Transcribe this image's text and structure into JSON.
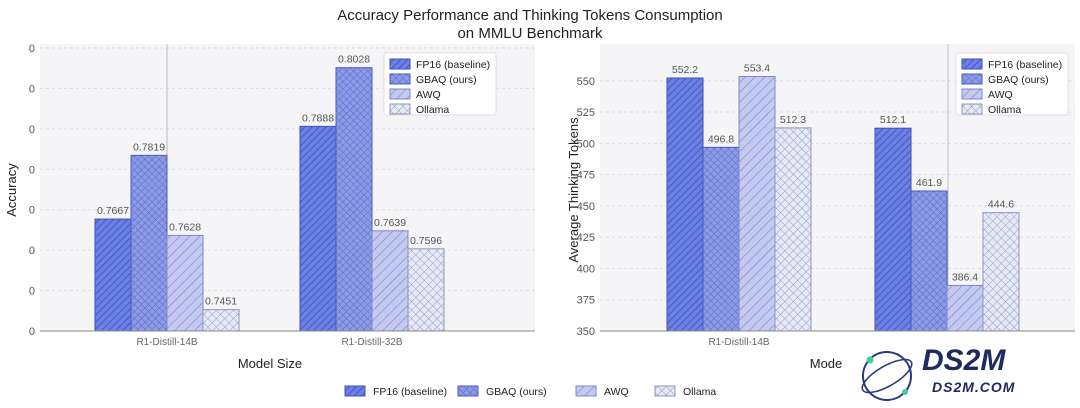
{
  "figure": {
    "title_line1": "Accuracy Performance and Thinking Tokens Consumption",
    "title_line2": "on MMLU Benchmark"
  },
  "series_style": [
    {
      "name": "FP16 (baseline)",
      "fill": "#6b80e6",
      "stroke": "#3f51b5",
      "pattern": "diag-dense"
    },
    {
      "name": "GBAQ (ours)",
      "fill": "#8d9be6",
      "stroke": "#4a5bbd",
      "pattern": "cross-dense"
    },
    {
      "name": "AWQ",
      "fill": "#c3c9f0",
      "stroke": "#7d86c8",
      "pattern": "diag"
    },
    {
      "name": "Ollama",
      "fill": "#e6e9f7",
      "stroke": "#8e95b8",
      "pattern": "cross"
    }
  ],
  "chart_data": [
    {
      "type": "bar",
      "xlabel": "Model Size",
      "ylabel": "Accuracy",
      "categories": [
        "R1-Distill-14B",
        "R1-Distill-32B"
      ],
      "yticks": [
        "0",
        "0",
        "0",
        "0",
        "0",
        "0",
        "0",
        "0"
      ],
      "ylim": [
        0.74,
        0.8075
      ],
      "grid": true,
      "legend_position": "top-right",
      "series": [
        {
          "name": "FP16 (baseline)",
          "values": [
            0.7667,
            0.7888
          ],
          "labels": [
            "0.7667",
            "0.7888"
          ]
        },
        {
          "name": "GBAQ (ours)",
          "values": [
            0.7819,
            0.8028
          ],
          "labels": [
            "0.7819",
            "0.8028"
          ]
        },
        {
          "name": "AWQ",
          "values": [
            0.7628,
            0.7639
          ],
          "labels": [
            "0.7628",
            "0.7639"
          ]
        },
        {
          "name": "Ollama",
          "values": [
            0.7451,
            0.7596
          ],
          "labels": [
            "0.7451",
            "0.7596"
          ]
        }
      ]
    },
    {
      "type": "bar",
      "xlabel": "Mode",
      "ylabel": "Average Thinking Tokens",
      "categories": [
        "R1-Distill-14B",
        ""
      ],
      "yticks": [
        "350",
        "375",
        "400",
        "425",
        "450",
        "475",
        "500",
        "525",
        "550"
      ],
      "ylim": [
        350,
        565
      ],
      "grid": true,
      "legend_position": "top-right",
      "series": [
        {
          "name": "FP16 (baseline)",
          "values": [
            552.2,
            512.1
          ],
          "labels": [
            "552.2",
            "512.1"
          ]
        },
        {
          "name": "GBAQ (ours)",
          "values": [
            496.8,
            461.9
          ],
          "labels": [
            "496.8",
            "461.9"
          ]
        },
        {
          "name": "AWQ",
          "values": [
            553.4,
            386.4
          ],
          "labels": [
            "553.4",
            "386.4"
          ]
        },
        {
          "name": "Ollama",
          "values": [
            512.3,
            444.6
          ],
          "labels": [
            "512.3",
            "444.6"
          ]
        }
      ]
    }
  ],
  "watermark": {
    "big": "DS2M",
    "small": "DS2M.COM"
  }
}
